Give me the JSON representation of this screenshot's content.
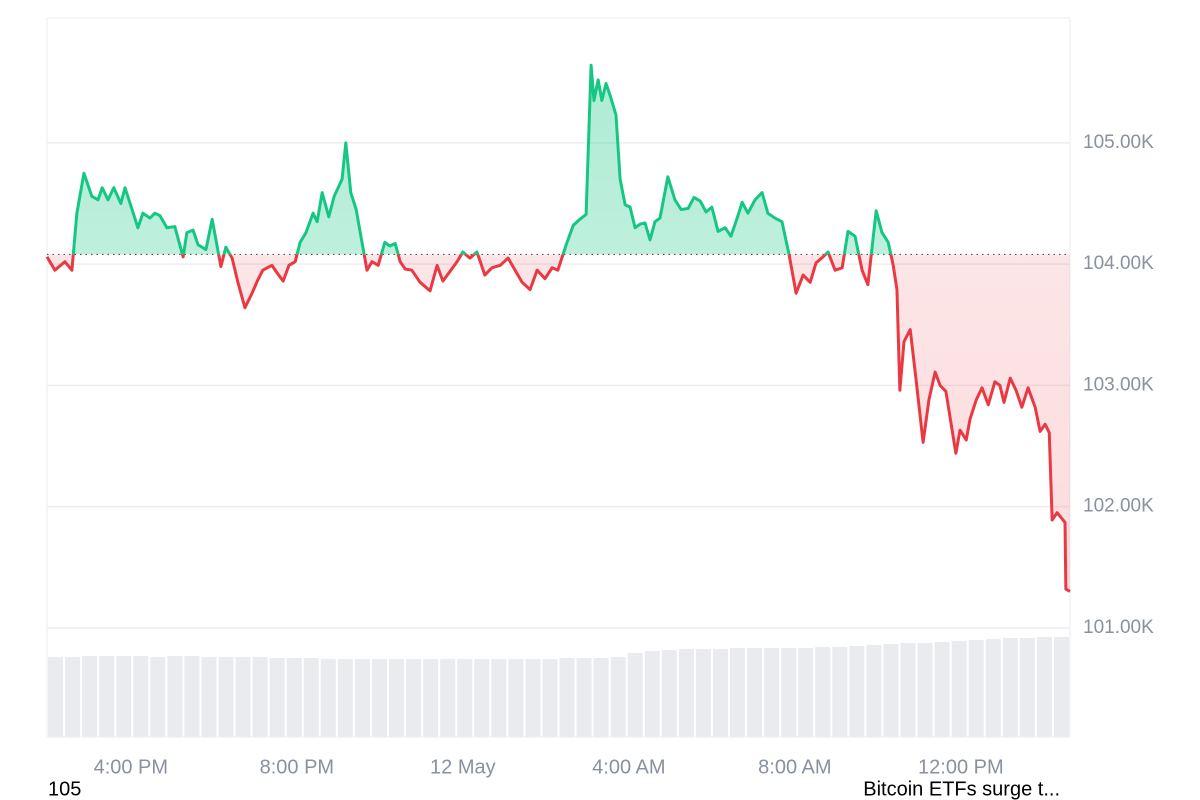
{
  "chart_data": {
    "type": "line",
    "x": [
      -10.02,
      -9.83,
      -9.59,
      -9.42,
      -9.3,
      -9.13,
      -8.94,
      -8.79,
      -8.69,
      -8.55,
      -8.41,
      -8.24,
      -8.14,
      -7.97,
      -7.83,
      -7.71,
      -7.54,
      -7.42,
      -7.3,
      -7.13,
      -6.94,
      -6.74,
      -6.65,
      -6.5,
      -6.38,
      -6.19,
      -6.04,
      -5.83,
      -5.71,
      -5.56,
      -5.42,
      -5.25,
      -5.08,
      -4.94,
      -4.82,
      -4.6,
      -4.48,
      -4.33,
      -4.19,
      -4.04,
      -3.92,
      -3.78,
      -3.61,
      -3.51,
      -3.39,
      -3.23,
      -3.1,
      -2.91,
      -2.82,
      -2.7,
      -2.57,
      -2.43,
      -2.31,
      -2.19,
      -2.04,
      -1.88,
      -1.76,
      -1.63,
      -1.51,
      -1.39,
      -1.23,
      -1.03,
      -0.79,
      -0.62,
      -0.48,
      -0.31,
      -0.14,
      0.0,
      0.17,
      0.34,
      0.53,
      0.7,
      0.9,
      1.09,
      1.26,
      1.43,
      1.62,
      1.79,
      1.98,
      2.15,
      2.29,
      2.49,
      2.66,
      2.82,
      2.97,
      3.09,
      3.16,
      3.26,
      3.35,
      3.45,
      3.55,
      3.69,
      3.79,
      3.91,
      4.03,
      4.15,
      4.27,
      4.39,
      4.51,
      4.63,
      4.75,
      4.94,
      5.11,
      5.26,
      5.43,
      5.57,
      5.72,
      5.86,
      6.0,
      6.15,
      6.32,
      6.46,
      6.61,
      6.73,
      6.87,
      7.04,
      7.21,
      7.35,
      7.52,
      7.69,
      7.86,
      8.03,
      8.2,
      8.37,
      8.51,
      8.68,
      8.8,
      8.97,
      9.14,
      9.28,
      9.45,
      9.62,
      9.76,
      9.96,
      10.1,
      10.25,
      10.37,
      10.46,
      10.53,
      10.63,
      10.78,
      10.92,
      11.09,
      11.23,
      11.38,
      11.5,
      11.64,
      11.79,
      11.88,
      11.98,
      12.13,
      12.22,
      12.37,
      12.51,
      12.66,
      12.82,
      12.94,
      13.04,
      13.19,
      13.33,
      13.47,
      13.62,
      13.79,
      13.91,
      14.03,
      14.13,
      14.2,
      14.32,
      14.51,
      14.53,
      14.63
    ],
    "values": [
      104060,
      103950,
      104020,
      103950,
      104420,
      104750,
      104560,
      104530,
      104630,
      104530,
      104630,
      104500,
      104630,
      104450,
      104300,
      104420,
      104380,
      104420,
      104400,
      104300,
      104310,
      104060,
      104260,
      104280,
      104160,
      104120,
      104370,
      103980,
      104140,
      104050,
      103850,
      103640,
      103760,
      103870,
      103950,
      103990,
      103930,
      103860,
      103990,
      104020,
      104180,
      104260,
      104420,
      104350,
      104590,
      104390,
      104560,
      104700,
      105000,
      104590,
      104450,
      104180,
      103950,
      104020,
      103990,
      104180,
      104150,
      104170,
      104020,
      103960,
      103950,
      103850,
      103780,
      103990,
      103860,
      103940,
      104020,
      104100,
      104050,
      104100,
      103910,
      103970,
      103990,
      104050,
      103950,
      103850,
      103790,
      103950,
      103880,
      103970,
      103950,
      104160,
      104320,
      104370,
      104410,
      105640,
      105350,
      105520,
      105350,
      105490,
      105390,
      105230,
      104700,
      104490,
      104470,
      104300,
      104330,
      104340,
      104200,
      104350,
      104380,
      104720,
      104530,
      104450,
      104460,
      104550,
      104520,
      104430,
      104470,
      104270,
      104300,
      104230,
      104380,
      104510,
      104420,
      104530,
      104590,
      104420,
      104380,
      104350,
      104080,
      103760,
      103910,
      103850,
      104010,
      104060,
      104100,
      103950,
      103970,
      104270,
      104230,
      103950,
      103830,
      104440,
      104260,
      104180,
      103990,
      103790,
      102960,
      103360,
      103460,
      103050,
      102530,
      102880,
      103110,
      103000,
      102950,
      102630,
      102440,
      102630,
      102550,
      102720,
      102880,
      102980,
      102840,
      103030,
      103000,
      102860,
      103060,
      102960,
      102820,
      102980,
      102820,
      102620,
      102680,
      102610,
      101890,
      101950,
      101870,
      101320,
      101300
    ],
    "baseline": 104080,
    "color_up": "#16c784",
    "color_down": "#ea3943",
    "xlim": [
      -10.02,
      14.63
    ],
    "xticks": [
      {
        "value": -8,
        "label": "4:00 PM"
      },
      {
        "value": -4,
        "label": "8:00 PM"
      },
      {
        "value": 0,
        "label": "12 May"
      },
      {
        "value": 4,
        "label": "4:00 AM"
      },
      {
        "value": 8,
        "label": "8:00 AM"
      },
      {
        "value": 12,
        "label": "12:00 PM"
      }
    ],
    "ylim": [
      100100,
      106030
    ],
    "yticks": [
      {
        "value": 101000,
        "label": "101.00K"
      },
      {
        "value": 102000,
        "label": "102.00K"
      },
      {
        "value": 103000,
        "label": "103.00K"
      },
      {
        "value": 104000,
        "label": "104.00K"
      },
      {
        "value": 105000,
        "label": "105.00K"
      }
    ],
    "grid": true,
    "volume": {
      "color": "#e9ebef",
      "ylim": [
        0,
        110
      ],
      "values": [
        80,
        80,
        81,
        81,
        81,
        81,
        80,
        81,
        81,
        80,
        80,
        80,
        80,
        79,
        79,
        79,
        78,
        78,
        78,
        78,
        78,
        78,
        78,
        78,
        78,
        78,
        78,
        78,
        78,
        78,
        79,
        79,
        79,
        80,
        84,
        86,
        87,
        88,
        88,
        88,
        89,
        89,
        89,
        89,
        89,
        90,
        90,
        91,
        92,
        93,
        94,
        94,
        95,
        96,
        97,
        98,
        99,
        99,
        100,
        100
      ]
    }
  },
  "footer": {
    "left": "105",
    "right": "Bitcoin ETFs surge t..."
  }
}
